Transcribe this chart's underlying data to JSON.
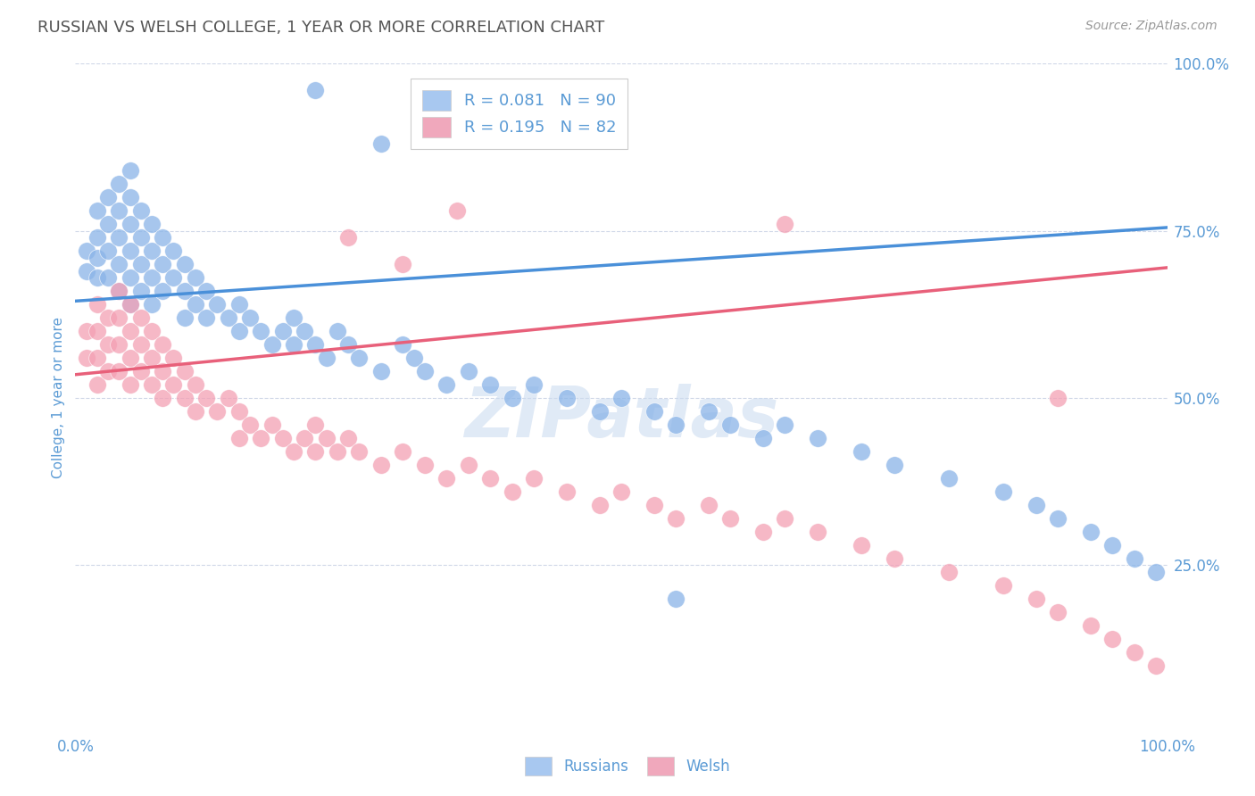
{
  "title": "RUSSIAN VS WELSH COLLEGE, 1 YEAR OR MORE CORRELATION CHART",
  "source_text": "Source: ZipAtlas.com",
  "ylabel": "College, 1 year or more",
  "xlim": [
    0.0,
    1.0
  ],
  "ylim": [
    0.0,
    1.0
  ],
  "xticks": [
    0.0,
    0.25,
    0.5,
    0.75,
    1.0
  ],
  "xtick_labels": [
    "0.0%",
    "",
    "",
    "",
    "100.0%"
  ],
  "ytick_labels_right": [
    "25.0%",
    "50.0%",
    "75.0%",
    "100.0%"
  ],
  "ytick_vals_right": [
    0.25,
    0.5,
    0.75,
    1.0
  ],
  "russian_R": 0.081,
  "russian_N": 90,
  "welsh_R": 0.195,
  "welsh_N": 82,
  "russian_color": "#8ab4e8",
  "welsh_color": "#f4a0b4",
  "russian_line_color": "#4a90d9",
  "welsh_line_color": "#e8607a",
  "legend_box_color_russian": "#a8c8f0",
  "legend_box_color_welsh": "#f0a8bc",
  "title_color": "#555555",
  "axis_color": "#5b9bd5",
  "watermark_color": "#ccdcf0",
  "grid_color": "#d0d8e8",
  "background_color": "#ffffff",
  "russian_line_x": [
    0.0,
    1.0
  ],
  "russian_line_y": [
    0.645,
    0.755
  ],
  "welsh_line_x": [
    0.0,
    1.0
  ],
  "welsh_line_y": [
    0.535,
    0.695
  ],
  "russian_x": [
    0.01,
    0.01,
    0.02,
    0.02,
    0.02,
    0.02,
    0.03,
    0.03,
    0.03,
    0.03,
    0.04,
    0.04,
    0.04,
    0.04,
    0.04,
    0.05,
    0.05,
    0.05,
    0.05,
    0.05,
    0.05,
    0.06,
    0.06,
    0.06,
    0.06,
    0.07,
    0.07,
    0.07,
    0.07,
    0.08,
    0.08,
    0.08,
    0.09,
    0.09,
    0.1,
    0.1,
    0.1,
    0.11,
    0.11,
    0.12,
    0.12,
    0.13,
    0.14,
    0.15,
    0.15,
    0.16,
    0.17,
    0.18,
    0.19,
    0.2,
    0.2,
    0.21,
    0.22,
    0.23,
    0.24,
    0.25,
    0.26,
    0.28,
    0.3,
    0.31,
    0.32,
    0.34,
    0.36,
    0.38,
    0.4,
    0.42,
    0.45,
    0.48,
    0.5,
    0.53,
    0.55,
    0.58,
    0.6,
    0.63,
    0.65,
    0.68,
    0.72,
    0.75,
    0.8,
    0.85,
    0.88,
    0.9,
    0.93,
    0.95,
    0.97,
    0.99,
    0.32,
    0.28,
    0.22,
    0.55
  ],
  "russian_y": [
    0.72,
    0.69,
    0.78,
    0.74,
    0.68,
    0.71,
    0.8,
    0.76,
    0.72,
    0.68,
    0.82,
    0.78,
    0.74,
    0.7,
    0.66,
    0.84,
    0.8,
    0.76,
    0.72,
    0.68,
    0.64,
    0.78,
    0.74,
    0.7,
    0.66,
    0.76,
    0.72,
    0.68,
    0.64,
    0.74,
    0.7,
    0.66,
    0.72,
    0.68,
    0.7,
    0.66,
    0.62,
    0.68,
    0.64,
    0.66,
    0.62,
    0.64,
    0.62,
    0.64,
    0.6,
    0.62,
    0.6,
    0.58,
    0.6,
    0.58,
    0.62,
    0.6,
    0.58,
    0.56,
    0.6,
    0.58,
    0.56,
    0.54,
    0.58,
    0.56,
    0.54,
    0.52,
    0.54,
    0.52,
    0.5,
    0.52,
    0.5,
    0.48,
    0.5,
    0.48,
    0.46,
    0.48,
    0.46,
    0.44,
    0.46,
    0.44,
    0.42,
    0.4,
    0.38,
    0.36,
    0.34,
    0.32,
    0.3,
    0.28,
    0.26,
    0.24,
    0.92,
    0.88,
    0.96,
    0.2
  ],
  "welsh_x": [
    0.01,
    0.01,
    0.02,
    0.02,
    0.02,
    0.02,
    0.03,
    0.03,
    0.03,
    0.04,
    0.04,
    0.04,
    0.04,
    0.05,
    0.05,
    0.05,
    0.05,
    0.06,
    0.06,
    0.06,
    0.07,
    0.07,
    0.07,
    0.08,
    0.08,
    0.08,
    0.09,
    0.09,
    0.1,
    0.1,
    0.11,
    0.11,
    0.12,
    0.13,
    0.14,
    0.15,
    0.15,
    0.16,
    0.17,
    0.18,
    0.19,
    0.2,
    0.21,
    0.22,
    0.22,
    0.23,
    0.24,
    0.25,
    0.26,
    0.28,
    0.3,
    0.32,
    0.34,
    0.36,
    0.38,
    0.4,
    0.42,
    0.45,
    0.48,
    0.5,
    0.53,
    0.55,
    0.58,
    0.6,
    0.63,
    0.65,
    0.68,
    0.72,
    0.75,
    0.8,
    0.85,
    0.88,
    0.9,
    0.93,
    0.95,
    0.97,
    0.99,
    0.25,
    0.3,
    0.35,
    0.65,
    0.9
  ],
  "welsh_y": [
    0.6,
    0.56,
    0.64,
    0.6,
    0.56,
    0.52,
    0.62,
    0.58,
    0.54,
    0.66,
    0.62,
    0.58,
    0.54,
    0.64,
    0.6,
    0.56,
    0.52,
    0.62,
    0.58,
    0.54,
    0.6,
    0.56,
    0.52,
    0.58,
    0.54,
    0.5,
    0.56,
    0.52,
    0.54,
    0.5,
    0.52,
    0.48,
    0.5,
    0.48,
    0.5,
    0.48,
    0.44,
    0.46,
    0.44,
    0.46,
    0.44,
    0.42,
    0.44,
    0.42,
    0.46,
    0.44,
    0.42,
    0.44,
    0.42,
    0.4,
    0.42,
    0.4,
    0.38,
    0.4,
    0.38,
    0.36,
    0.38,
    0.36,
    0.34,
    0.36,
    0.34,
    0.32,
    0.34,
    0.32,
    0.3,
    0.32,
    0.3,
    0.28,
    0.26,
    0.24,
    0.22,
    0.2,
    0.18,
    0.16,
    0.14,
    0.12,
    0.1,
    0.74,
    0.7,
    0.78,
    0.76,
    0.5
  ]
}
